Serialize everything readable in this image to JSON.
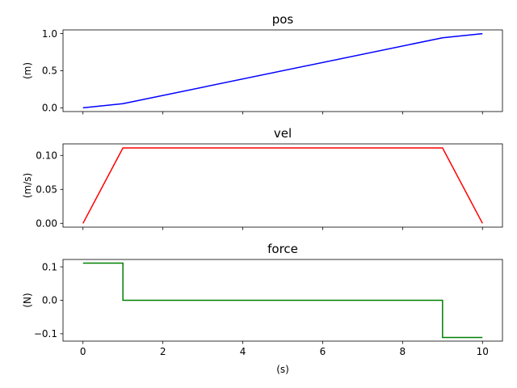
{
  "chart_data": [
    {
      "type": "line",
      "title": "pos",
      "ylabel": "(m)",
      "xlabel": "",
      "xlim": [
        -0.5,
        10.5
      ],
      "ylim": [
        -0.05,
        1.05
      ],
      "x_ticks": [
        0,
        2,
        4,
        6,
        8,
        10
      ],
      "x_tick_labels": [
        "",
        "",
        "",
        "",
        "",
        ""
      ],
      "y_ticks": [
        0.0,
        0.5,
        1.0
      ],
      "y_tick_labels": [
        "0.0",
        "0.5",
        "1.0"
      ],
      "grid": false,
      "series": [
        {
          "color": "#0000ff",
          "x": [
            0,
            1,
            9,
            10
          ],
          "y": [
            0.0,
            0.056,
            0.944,
            1.0
          ]
        }
      ]
    },
    {
      "type": "line",
      "title": "vel",
      "ylabel": "(m/s)",
      "xlabel": "",
      "xlim": [
        -0.5,
        10.5
      ],
      "ylim": [
        -0.0056,
        0.117
      ],
      "x_ticks": [
        0,
        2,
        4,
        6,
        8,
        10
      ],
      "x_tick_labels": [
        "",
        "",
        "",
        "",
        "",
        ""
      ],
      "y_ticks": [
        0.0,
        0.05,
        0.1
      ],
      "y_tick_labels": [
        "0.00",
        "0.05",
        "0.10"
      ],
      "grid": false,
      "series": [
        {
          "color": "#ff0000",
          "x": [
            0,
            1,
            9,
            10
          ],
          "y": [
            0.0,
            0.111,
            0.111,
            0.0
          ]
        }
      ]
    },
    {
      "type": "line",
      "title": "force",
      "ylabel": "(N)",
      "xlabel": "(s)",
      "xlim": [
        -0.5,
        10.5
      ],
      "ylim": [
        -0.122,
        0.122
      ],
      "x_ticks": [
        0,
        2,
        4,
        6,
        8,
        10
      ],
      "x_tick_labels": [
        "0",
        "2",
        "4",
        "6",
        "8",
        "10"
      ],
      "y_ticks": [
        -0.1,
        0.0,
        0.1
      ],
      "y_tick_labels": [
        "−0.1",
        "0.0",
        "0.1"
      ],
      "grid": false,
      "series": [
        {
          "color": "#008000",
          "x": [
            0,
            1,
            1,
            9,
            9,
            10
          ],
          "y": [
            0.111,
            0.111,
            0.0,
            0.0,
            -0.111,
            -0.111
          ]
        }
      ]
    }
  ]
}
